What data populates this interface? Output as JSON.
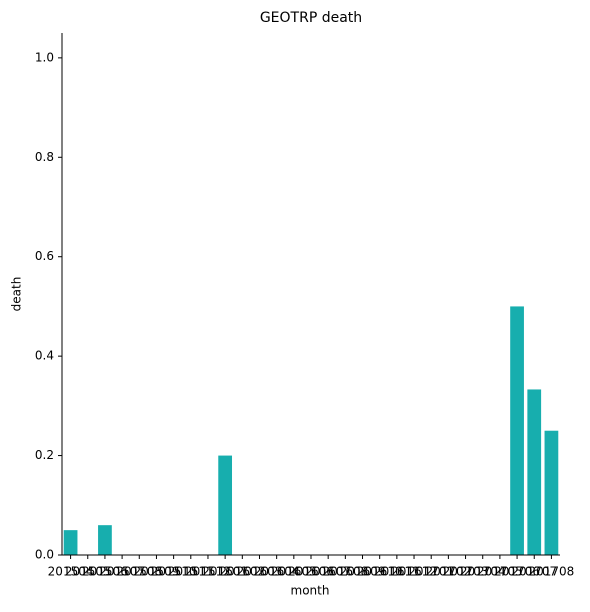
{
  "chart_data": {
    "type": "bar",
    "title": "GEOTRP death",
    "x_label": "month",
    "y_label": "death",
    "categories": [
      "201504",
      "201505",
      "201506",
      "201507",
      "201508",
      "201509",
      "201510",
      "201511",
      "201512",
      "201601",
      "201602",
      "201603",
      "201604",
      "201605",
      "201606",
      "201607",
      "201608",
      "201609",
      "201610",
      "201611",
      "201612",
      "201701",
      "201702",
      "201703",
      "201704",
      "201705",
      "201706",
      "201707",
      "201708"
    ],
    "values": [
      0.05,
      0,
      0.06,
      0,
      0,
      0,
      0,
      0,
      0,
      0.2,
      0,
      0,
      0,
      0,
      0,
      0,
      0,
      0,
      0,
      0,
      0,
      0,
      0,
      0,
      0,
      0,
      0.5,
      0.333,
      0.25
    ],
    "color": "#17aeae",
    "ylim": [
      0,
      1.05
    ],
    "yticks": [
      {
        "value": 0,
        "label": "0.0"
      },
      0.2,
      0.4,
      0.6,
      0.8,
      {
        "value": 1,
        "label": "1.0"
      }
    ]
  }
}
